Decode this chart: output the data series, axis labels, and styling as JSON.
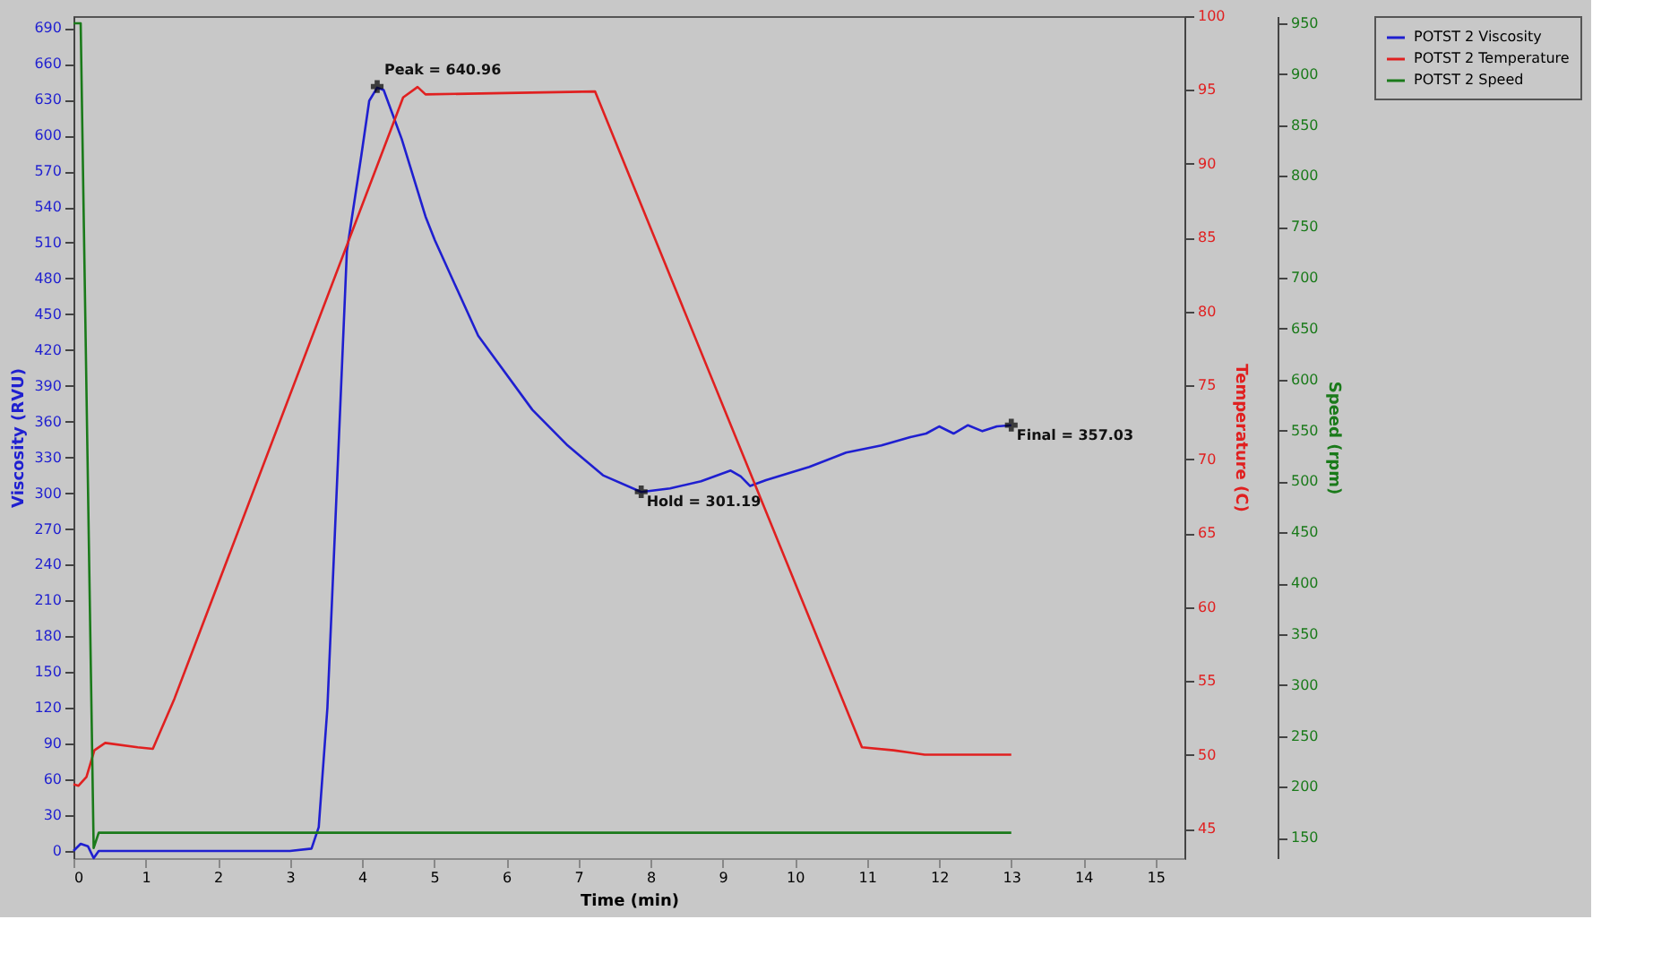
{
  "chart_data": {
    "type": "line",
    "xlabel": "Time (min)",
    "ylabel": "Viscosity (RVU)",
    "y2label": "Temperature (C)",
    "y3label": "Speed (rpm)",
    "xlim": [
      0,
      15.4
    ],
    "xticks": [
      0,
      1,
      2,
      3,
      4,
      5,
      6,
      7,
      8,
      9,
      10,
      11,
      12,
      13,
      14,
      15
    ],
    "ylim": [
      -6,
      700
    ],
    "yticks": [
      0,
      30,
      60,
      90,
      120,
      150,
      180,
      210,
      240,
      270,
      300,
      330,
      360,
      390,
      420,
      450,
      480,
      510,
      540,
      570,
      600,
      630,
      660,
      690
    ],
    "y2lim": [
      43,
      100
    ],
    "y2ticks": [
      45,
      50,
      55,
      60,
      65,
      70,
      75,
      80,
      85,
      90,
      95,
      100
    ],
    "y3lim": [
      130,
      957
    ],
    "y3ticks": [
      150,
      200,
      250,
      300,
      350,
      400,
      450,
      500,
      550,
      600,
      650,
      700,
      750,
      800,
      850,
      900,
      950
    ],
    "grid": false,
    "legend": "right",
    "line_style": "solid",
    "marker": "none",
    "series": [
      {
        "name": "POTST 2 Viscosity",
        "color": "#1f1fd0",
        "x": [
          0,
          0.1,
          0.2,
          0.28,
          0.35,
          1,
          2,
          3,
          3.3,
          3.4,
          3.52,
          3.61,
          3.79,
          3.99,
          4.1,
          4.21,
          4.3,
          4.55,
          4.88,
          5.01,
          5.61,
          6.36,
          6.85,
          7.34,
          7.87,
          8.27,
          8.7,
          9.11,
          9.25,
          9.38,
          9.6,
          10.2,
          10.71,
          11.2,
          11.6,
          11.82,
          12.0,
          12.2,
          12.4,
          12.6,
          12.8,
          13.0
        ],
        "values": [
          0,
          6,
          4,
          -6,
          0,
          0,
          0,
          0,
          2,
          20,
          120,
          247,
          503,
          583,
          629,
          640,
          638,
          597,
          532,
          512,
          432,
          370,
          340,
          315,
          301,
          304,
          310,
          319,
          314,
          306,
          311,
          322,
          334,
          340,
          347,
          350,
          356,
          350,
          357,
          352,
          356,
          357
        ]
      },
      {
        "name": "POTST 2 Temperature",
        "color": "#e02020",
        "axis": "y2",
        "x": [
          0.0,
          0.07,
          0.18,
          0.29,
          0.44,
          0.89,
          1.1,
          1.4,
          4.57,
          4.77,
          4.88,
          7.23,
          10.93,
          11.37,
          11.8,
          13.0
        ],
        "values": [
          48,
          47.9,
          48.5,
          50.3,
          50.8,
          50.5,
          50.4,
          53.8,
          94.5,
          95.2,
          94.7,
          94.9,
          50.5,
          50.3,
          50,
          50
        ]
      },
      {
        "name": "POTST 2 Speed",
        "color": "#1a7a1a",
        "axis": "y3",
        "x": [
          0,
          0.1,
          0.28,
          0.35,
          13.0
        ],
        "values": [
          950,
          950,
          140,
          155,
          155
        ]
      }
    ],
    "annotations": [
      {
        "text": "Peak = 640.96",
        "x": 4.21,
        "y": 640.96
      },
      {
        "text": "Hold = 301.19",
        "x": 7.87,
        "y": 301.19
      },
      {
        "text": "Final = 357.03",
        "x": 13.0,
        "y": 357.03
      }
    ]
  }
}
